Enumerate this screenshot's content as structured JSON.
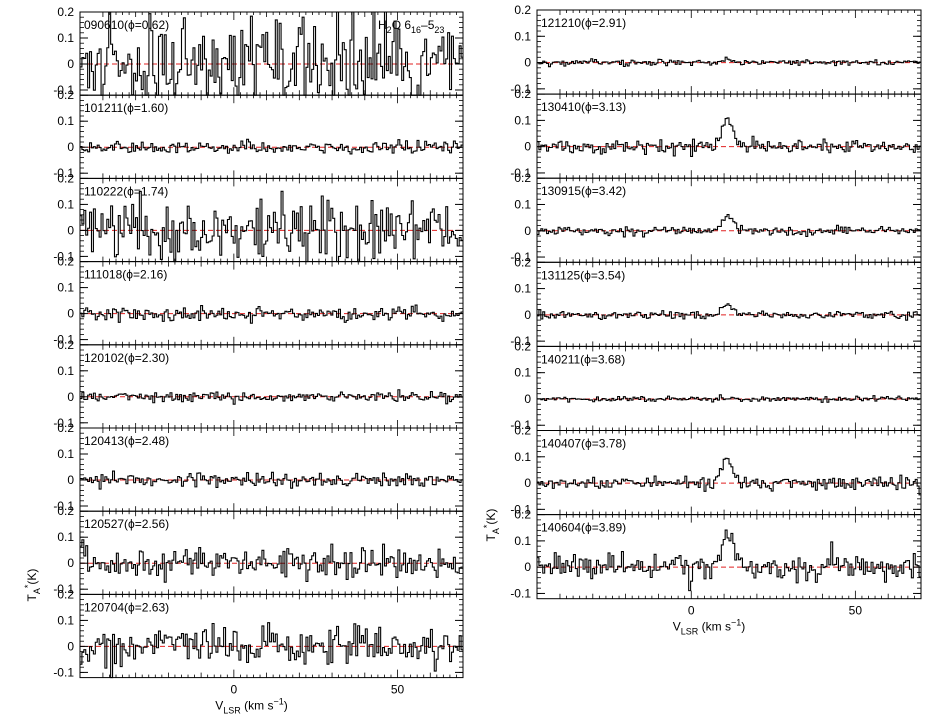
{
  "chart_data": {
    "type": "line",
    "title": "H2O 6_16-5_23",
    "title_parts": {
      "main": "H",
      "sub1": "2",
      "mid": "O 6",
      "sub2": "16",
      "dash": "–5",
      "sub3": "23"
    },
    "xlabel": "V_LSR (km s^-1)",
    "xlabel_parts": {
      "main": "V",
      "sub": "LSR",
      "rest": " (km s",
      "sup": "−1",
      "end": ")"
    },
    "ylabel": "T_A*(K)",
    "ylabel_parts": {
      "main": "T",
      "sub": "A",
      "sup": "*",
      "rest": "(K)"
    },
    "xlim": [
      -47,
      70
    ],
    "x_ticks": [
      "0",
      "50"
    ],
    "x_tick_values": [
      0,
      50
    ],
    "reference_line": {
      "y": 0,
      "color": "#e02020"
    },
    "spectrum_color": "#000000",
    "columns": [
      {
        "panels": [
          {
            "label": "090610(ϕ=0.62)",
            "phase": 0.62,
            "ylim": [
              -0.12,
              0.2
            ],
            "y_ticks": [
              "0.2",
              "0.1",
              "0",
              "-0.1"
            ],
            "noise_rms": 0.085,
            "peak": 0.0,
            "seed": 11
          },
          {
            "label": "101211(ϕ=1.60)",
            "phase": 1.6,
            "ylim": [
              -0.12,
              0.2
            ],
            "y_ticks": [
              "0.2",
              "0.1",
              "0",
              "-0.1"
            ],
            "noise_rms": 0.012,
            "peak": 0.0,
            "seed": 23
          },
          {
            "label": "110222(ϕ=1.74)",
            "phase": 1.74,
            "ylim": [
              -0.12,
              0.2
            ],
            "y_ticks": [
              "0.2",
              "0.1",
              "0",
              "-0.1"
            ],
            "noise_rms": 0.06,
            "peak": 0.04,
            "seed": 37
          },
          {
            "label": "111018(ϕ=2.16)",
            "phase": 2.16,
            "ylim": [
              -0.12,
              0.2
            ],
            "y_ticks": [
              "0.2",
              "0.1",
              "0",
              "-0.1"
            ],
            "noise_rms": 0.015,
            "peak": 0.0,
            "seed": 41
          },
          {
            "label": "120102(ϕ=2.30)",
            "phase": 2.3,
            "ylim": [
              -0.12,
              0.2
            ],
            "y_ticks": [
              "0.2",
              "0.1",
              "0",
              "-0.1"
            ],
            "noise_rms": 0.009,
            "peak": 0.0,
            "seed": 53
          },
          {
            "label": "120413(ϕ=2.48)",
            "phase": 2.48,
            "ylim": [
              -0.12,
              0.2
            ],
            "y_ticks": [
              "0.2",
              "0.1",
              "0",
              "-0.1"
            ],
            "noise_rms": 0.012,
            "peak": 0.0,
            "seed": 67
          },
          {
            "label": "120527(ϕ=2.56)",
            "phase": 2.56,
            "ylim": [
              -0.12,
              0.2
            ],
            "y_ticks": [
              "0.2",
              "0.1",
              "0",
              "-0.1"
            ],
            "noise_rms": 0.028,
            "peak": 0.0,
            "seed": 71
          },
          {
            "label": "120704(ϕ=2.63)",
            "phase": 2.63,
            "ylim": [
              -0.12,
              0.2
            ],
            "y_ticks": [
              "0.2",
              "0.1",
              "0",
              "-0.1"
            ],
            "noise_rms": 0.035,
            "peak": 0.03,
            "seed": 83
          }
        ]
      },
      {
        "panels": [
          {
            "label": "121210(ϕ=2.91)",
            "phase": 2.91,
            "ylim": [
              -0.12,
              0.2
            ],
            "y_ticks": [
              "0.2",
              "0.1",
              "0",
              "-0.1"
            ],
            "noise_rms": 0.006,
            "peak": 0.015,
            "seed": 97
          },
          {
            "label": "130410(ϕ=3.13)",
            "phase": 3.13,
            "ylim": [
              -0.12,
              0.2
            ],
            "y_ticks": [
              "0.2",
              "0.1",
              "0",
              "-0.1"
            ],
            "noise_rms": 0.012,
            "peak": 0.11,
            "seed": 101
          },
          {
            "label": "130915(ϕ=3.42)",
            "phase": 3.42,
            "ylim": [
              -0.12,
              0.2
            ],
            "y_ticks": [
              "0.2",
              "0.1",
              "0",
              "-0.1"
            ],
            "noise_rms": 0.008,
            "peak": 0.06,
            "seed": 113
          },
          {
            "label": "131125(ϕ=3.54)",
            "phase": 3.54,
            "ylim": [
              -0.12,
              0.2
            ],
            "y_ticks": [
              "0.2",
              "0.1",
              "0",
              "-0.1"
            ],
            "noise_rms": 0.008,
            "peak": 0.04,
            "seed": 127
          },
          {
            "label": "140211(ϕ=3.68)",
            "phase": 3.68,
            "ylim": [
              -0.12,
              0.2
            ],
            "y_ticks": [
              "0.2",
              "0.1",
              "0",
              "-0.1"
            ],
            "noise_rms": 0.005,
            "peak": 0.0,
            "seed": 131
          },
          {
            "label": "140407(ϕ=3.78)",
            "phase": 3.78,
            "ylim": [
              -0.12,
              0.2
            ],
            "y_ticks": [
              "0.2",
              "0.1",
              "0",
              "-0.1"
            ],
            "noise_rms": 0.012,
            "peak": 0.09,
            "seed": 139
          },
          {
            "label": "140604(ϕ=3.89)",
            "phase": 3.89,
            "ylim": [
              -0.12,
              0.2
            ],
            "y_ticks": [
              "0.2",
              "0.1",
              "0",
              "-0.1"
            ],
            "noise_rms": 0.025,
            "peak": 0.14,
            "seed": 149
          }
        ]
      }
    ]
  }
}
